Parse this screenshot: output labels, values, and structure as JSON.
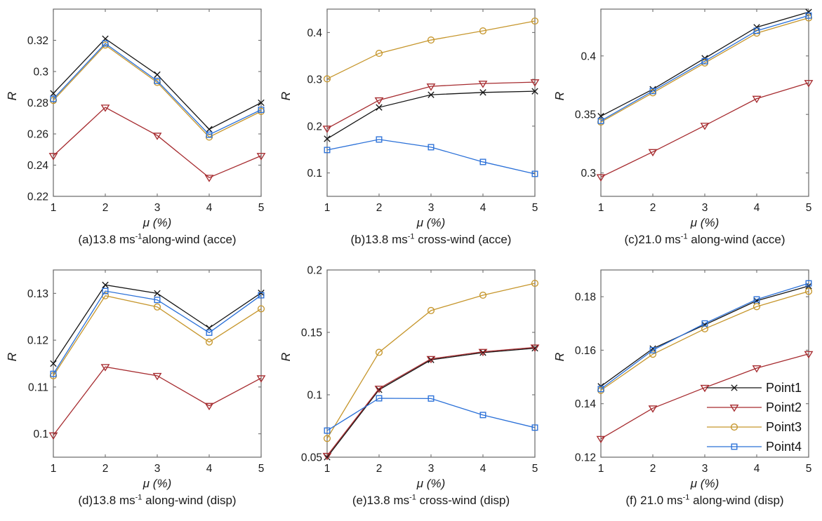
{
  "figure": {
    "background": "#ffffff",
    "grid": "off",
    "layout": "2 rows x 3 columns"
  },
  "styles": {
    "axis_color": "#6f6f6f",
    "tick_text_color": "#1a1a1a",
    "series": [
      {
        "name": "Point1",
        "color": "#141414",
        "marker": "x"
      },
      {
        "name": "Point2",
        "color": "#A62B2F",
        "marker": "triangle-down"
      },
      {
        "name": "Point3",
        "color": "#C6962C",
        "marker": "circle"
      },
      {
        "name": "Point4",
        "color": "#2A70D8",
        "marker": "square"
      }
    ]
  },
  "legend": {
    "entries": [
      "Point1",
      "Point2",
      "Point3",
      "Point4"
    ],
    "location": "inside bottom-right of subplot (f)"
  },
  "chart_data": [
    {
      "id": "a",
      "type": "line",
      "caption": {
        "prefix": "(a)13.8 ms",
        "sup": "-1",
        "suffix": "along-wind (acce)"
      },
      "xlabel": "μ (%)",
      "ylabel": "R",
      "x": [
        1,
        2,
        3,
        4,
        5
      ],
      "xlim": [
        1,
        5
      ],
      "ylim": [
        0.22,
        0.34
      ],
      "xtick_labels": [
        "1",
        "2",
        "3",
        "4",
        "5"
      ],
      "yticks": [
        0.22,
        0.24,
        0.26,
        0.28,
        0.3,
        0.32
      ],
      "ytick_labels": [
        "0.22",
        "0.24",
        "0.26",
        "0.28",
        "0.3",
        "0.32"
      ],
      "series": [
        {
          "name": "Point1",
          "values": [
            0.286,
            0.321,
            0.298,
            0.263,
            0.28
          ]
        },
        {
          "name": "Point2",
          "values": [
            0.246,
            0.277,
            0.259,
            0.232,
            0.246
          ]
        },
        {
          "name": "Point3",
          "values": [
            0.2815,
            0.317,
            0.293,
            0.258,
            0.2745
          ]
        },
        {
          "name": "Point4",
          "values": [
            0.2825,
            0.318,
            0.294,
            0.2595,
            0.2755
          ]
        }
      ],
      "show_legend": false
    },
    {
      "id": "b",
      "type": "line",
      "caption": {
        "prefix": "(b)13.8 ms",
        "sup": "-1",
        "suffix": " cross-wind (acce)"
      },
      "xlabel": "μ (%)",
      "ylabel": "R",
      "x": [
        1,
        2,
        3,
        4,
        5
      ],
      "xlim": [
        1,
        5
      ],
      "ylim": [
        0.05,
        0.45
      ],
      "xtick_labels": [
        "1",
        "2",
        "3",
        "4",
        "5"
      ],
      "yticks": [
        0.1,
        0.2,
        0.3,
        0.4
      ],
      "ytick_labels": [
        "0.1",
        "0.2",
        "0.3",
        "0.4"
      ],
      "series": [
        {
          "name": "Point1",
          "values": [
            0.173,
            0.24,
            0.267,
            0.272,
            0.2745
          ]
        },
        {
          "name": "Point2",
          "values": [
            0.195,
            0.2555,
            0.285,
            0.291,
            0.294
          ]
        },
        {
          "name": "Point3",
          "values": [
            0.301,
            0.3555,
            0.384,
            0.4035,
            0.4245
          ]
        },
        {
          "name": "Point4",
          "values": [
            0.149,
            0.1715,
            0.155,
            0.1235,
            0.098
          ]
        }
      ],
      "show_legend": false
    },
    {
      "id": "c",
      "type": "line",
      "caption": {
        "prefix": "(c)21.0 ms",
        "sup": "-1",
        "suffix": " along-wind (acce)"
      },
      "xlabel": "μ (%)",
      "ylabel": "R",
      "x": [
        1,
        2,
        3,
        4,
        5
      ],
      "xlim": [
        1,
        5
      ],
      "ylim": [
        0.28,
        0.44
      ],
      "xtick_labels": [
        "1",
        "2",
        "3",
        "4",
        "5"
      ],
      "yticks": [
        0.3,
        0.35,
        0.4
      ],
      "ytick_labels": [
        "0.3",
        "0.35",
        "0.4"
      ],
      "series": [
        {
          "name": "Point1",
          "values": [
            0.3485,
            0.3715,
            0.398,
            0.4245,
            0.4375
          ]
        },
        {
          "name": "Point2",
          "values": [
            0.2965,
            0.318,
            0.3405,
            0.3635,
            0.377
          ]
        },
        {
          "name": "Point3",
          "values": [
            0.3435,
            0.3685,
            0.394,
            0.4195,
            0.4325
          ]
        },
        {
          "name": "Point4",
          "values": [
            0.3445,
            0.37,
            0.3955,
            0.4215,
            0.4345
          ]
        }
      ],
      "show_legend": false
    },
    {
      "id": "d",
      "type": "line",
      "caption": {
        "prefix": "(d)13.8 ms",
        "sup": "-1",
        "suffix": " along-wind (disp)"
      },
      "xlabel": "μ (%)",
      "ylabel": "R",
      "x": [
        1,
        2,
        3,
        4,
        5
      ],
      "xlim": [
        1,
        5
      ],
      "ylim": [
        0.095,
        0.135
      ],
      "xtick_labels": [
        "1",
        "2",
        "3",
        "4",
        "5"
      ],
      "yticks": [
        0.1,
        0.11,
        0.12,
        0.13
      ],
      "ytick_labels": [
        "0.1",
        "0.11",
        "0.12",
        "0.13"
      ],
      "series": [
        {
          "name": "Point1",
          "values": [
            0.115,
            0.1318,
            0.13,
            0.1226,
            0.1301
          ]
        },
        {
          "name": "Point2",
          "values": [
            0.0997,
            0.1143,
            0.1124,
            0.106,
            0.1119
          ]
        },
        {
          "name": "Point3",
          "values": [
            0.1124,
            0.1295,
            0.1271,
            0.1196,
            0.1267
          ]
        },
        {
          "name": "Point4",
          "values": [
            0.1128,
            0.1305,
            0.1286,
            0.1216,
            0.1296
          ]
        }
      ],
      "show_legend": false
    },
    {
      "id": "e",
      "type": "line",
      "caption": {
        "prefix": "(e)13.8 ms",
        "sup": "-1",
        "suffix": " cross-wind (disp)"
      },
      "xlabel": "μ (%)",
      "ylabel": "R",
      "x": [
        1,
        2,
        3,
        4,
        5
      ],
      "xlim": [
        1,
        5
      ],
      "ylim": [
        0.05,
        0.2
      ],
      "xtick_labels": [
        "1",
        "2",
        "3",
        "4",
        "5"
      ],
      "yticks": [
        0.05,
        0.1,
        0.15,
        0.2
      ],
      "ytick_labels": [
        "0.05",
        "0.1",
        "0.15",
        "0.2"
      ],
      "series": [
        {
          "name": "Point1",
          "values": [
            0.05,
            0.104,
            0.128,
            0.1338,
            0.1373
          ]
        },
        {
          "name": "Point2",
          "values": [
            0.0512,
            0.105,
            0.1288,
            0.1345,
            0.138
          ]
        },
        {
          "name": "Point3",
          "values": [
            0.065,
            0.134,
            0.1675,
            0.1798,
            0.1893
          ]
        },
        {
          "name": "Point4",
          "values": [
            0.0713,
            0.0972,
            0.097,
            0.0838,
            0.0737
          ]
        }
      ],
      "show_legend": false
    },
    {
      "id": "f",
      "type": "line",
      "caption": {
        "prefix": "(f) 21.0 ms",
        "sup": "-1",
        "suffix": " along-wind (disp)"
      },
      "xlabel": "μ (%)",
      "ylabel": "R",
      "x": [
        1,
        2,
        3,
        4,
        5
      ],
      "xlim": [
        1,
        5
      ],
      "ylim": [
        0.12,
        0.19
      ],
      "xtick_labels": [
        "1",
        "2",
        "3",
        "4",
        "5"
      ],
      "yticks": [
        0.12,
        0.14,
        0.16,
        0.18
      ],
      "ytick_labels": [
        "0.12",
        "0.14",
        "0.16",
        "0.18"
      ],
      "series": [
        {
          "name": "Point1",
          "values": [
            0.1465,
            0.1606,
            0.1695,
            0.1785,
            0.184
          ]
        },
        {
          "name": "Point2",
          "values": [
            0.1269,
            0.1383,
            0.146,
            0.1533,
            0.1586
          ]
        },
        {
          "name": "Point3",
          "values": [
            0.145,
            0.1585,
            0.168,
            0.1763,
            0.182
          ]
        },
        {
          "name": "Point4",
          "values": [
            0.1455,
            0.16,
            0.17,
            0.179,
            0.185
          ]
        }
      ],
      "show_legend": true
    }
  ]
}
